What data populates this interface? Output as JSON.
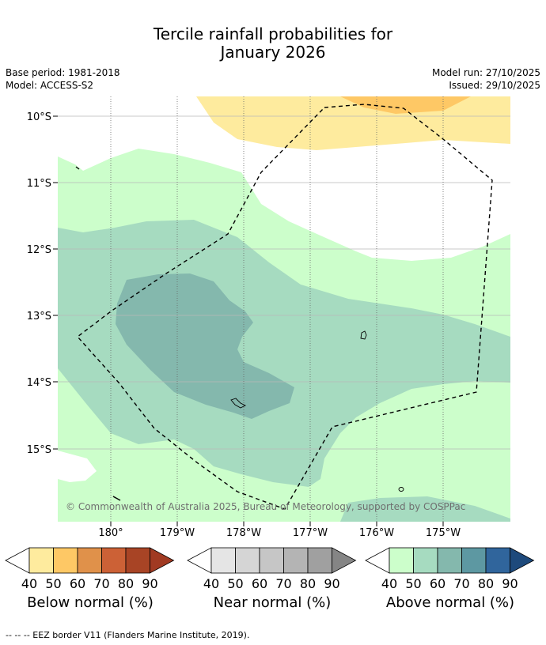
{
  "title": {
    "line1": "Tercile rainfall probabilities for",
    "line2": "January 2026"
  },
  "meta": {
    "base_period": "Base period: 1981-2018",
    "model": "Model: ACCESS-S2",
    "model_run": "Model run: 27/10/2025",
    "issued": "Issued: 29/10/2025"
  },
  "map": {
    "lat_labels": [
      "10°S",
      "11°S",
      "12°S",
      "13°S",
      "14°S",
      "15°S"
    ],
    "lon_labels": [
      "180°",
      "179°W",
      "178°W",
      "177°W",
      "176°W",
      "175°W"
    ],
    "copyright": "© Commonwealth of Australia 2025, Bureau of Meteorology, supported by COSPPac"
  },
  "colorbars": [
    {
      "label": "Below normal (%)",
      "ticks": [
        "40",
        "50",
        "60",
        "70",
        "80",
        "90"
      ],
      "colors": [
        "#ffffff",
        "#feeb9e",
        "#fec865",
        "#e0914a",
        "#cc6136",
        "#a84425",
        "#a13a22"
      ]
    },
    {
      "label": "Near normal (%)",
      "ticks": [
        "40",
        "50",
        "60",
        "70",
        "80",
        "90"
      ],
      "colors": [
        "#ffffff",
        "#e5e5e5",
        "#d5d5d5",
        "#c6c6c6",
        "#b4b4b4",
        "#a0a0a0",
        "#858585"
      ]
    },
    {
      "label": "Above normal (%)",
      "ticks": [
        "40",
        "50",
        "60",
        "70",
        "80",
        "90"
      ],
      "colors": [
        "#ffffff",
        "#ccfecb",
        "#a6dbc0",
        "#84b8ad",
        "#5d98a2",
        "#30659c",
        "#1e4a7c"
      ]
    }
  ],
  "footer": "--  --  -- EEZ border V11 (Flanders Marine Institute, 2019)."
}
